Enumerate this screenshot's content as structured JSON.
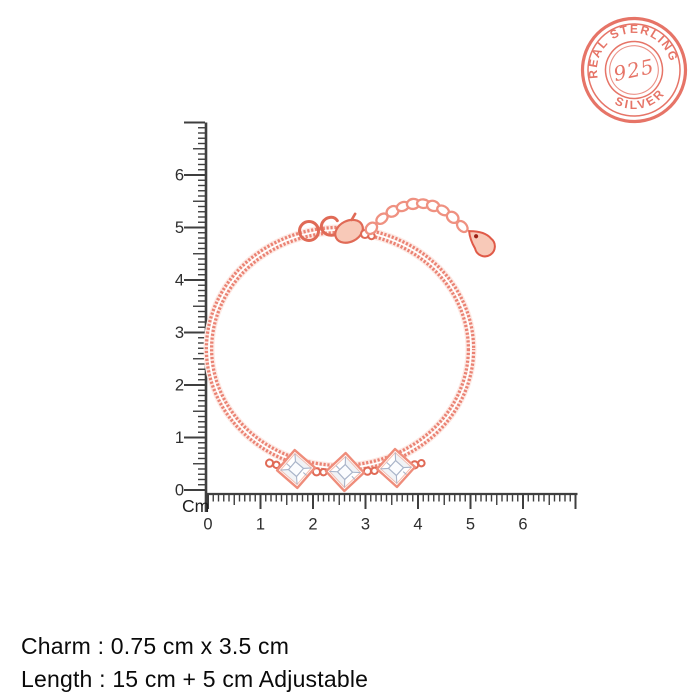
{
  "image": {
    "description": "Rose gold adjustable bracelet with three crystal charms photographed over centimeter rulers",
    "background_color": "#ffffff"
  },
  "stamp": {
    "arc_top_text": "REAL STERLING",
    "center_text": "925",
    "arc_bottom_text": "SILVER",
    "color": "#e4695b"
  },
  "rulers": {
    "unit_label": "Cm",
    "tick_color": "#3f3f3f",
    "vertical_labels": [
      "0",
      "1",
      "2",
      "3",
      "4",
      "5",
      "6"
    ],
    "horizontal_labels": [
      "0",
      "1",
      "2",
      "3",
      "4",
      "5",
      "6"
    ],
    "max_cm": 7
  },
  "bracelet": {
    "chain_color": "#ea8273",
    "chain_highlight": "#fdeae5",
    "metal_outline": "#e06a56",
    "link_color": "#ef9181",
    "tag_fill": "#f8c9b8",
    "charm_fill": "#ffffff",
    "charm_facet_color": "#a9b4c9",
    "charm_count": 3
  },
  "specs": {
    "charm_line": "Charm : 0.75 cm x 3.5 cm",
    "length_line": "Length : 15 cm + 5 cm Adjustable"
  }
}
